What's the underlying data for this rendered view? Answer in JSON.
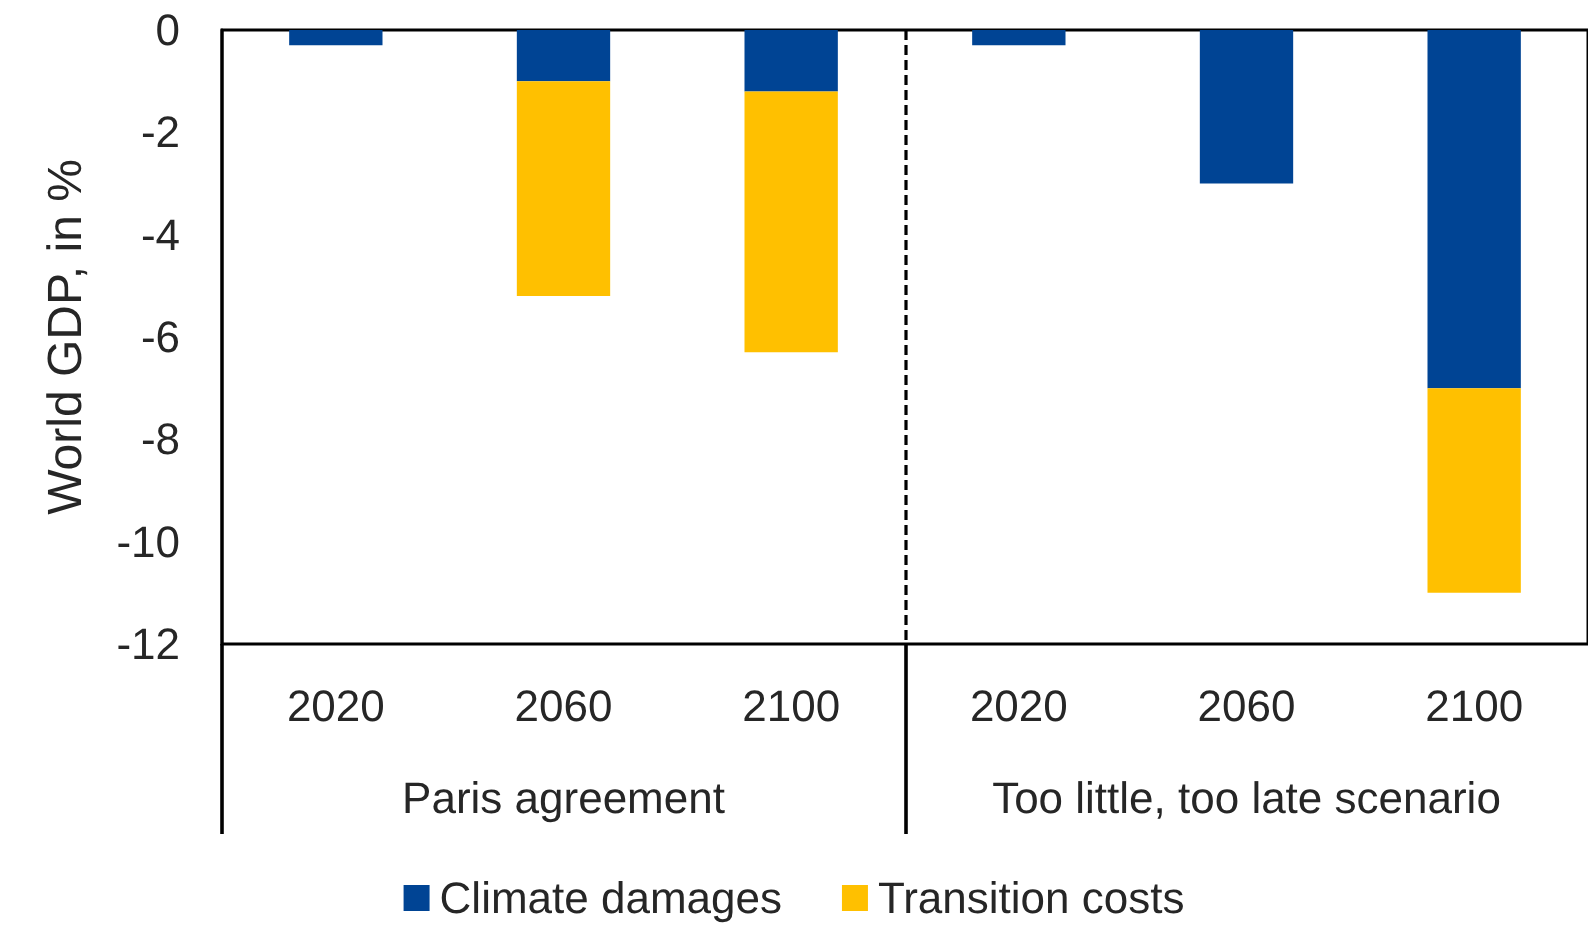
{
  "chart_data": {
    "type": "bar",
    "stacked": true,
    "ylabel": "World GDP, in %",
    "categories": [
      "2020",
      "2060",
      "2100",
      "2020",
      "2060",
      "2100"
    ],
    "series": [
      {
        "name": "Climate damages",
        "color": "#004494",
        "values": [
          -0.3,
          -1.0,
          -1.2,
          -0.3,
          -3.0,
          -7.0
        ]
      },
      {
        "name": "Transition costs",
        "color": "#ffc000",
        "values": [
          null,
          -4.2,
          -5.1,
          null,
          null,
          -4.0
        ]
      }
    ],
    "ylim": [
      -12,
      0
    ],
    "yticks": [
      -12,
      -10,
      -8,
      -6,
      -4,
      -2,
      0
    ],
    "grid": false,
    "legend": "bottom",
    "annotations": [
      "Paris agreement",
      "Too little, too late scenario"
    ]
  }
}
